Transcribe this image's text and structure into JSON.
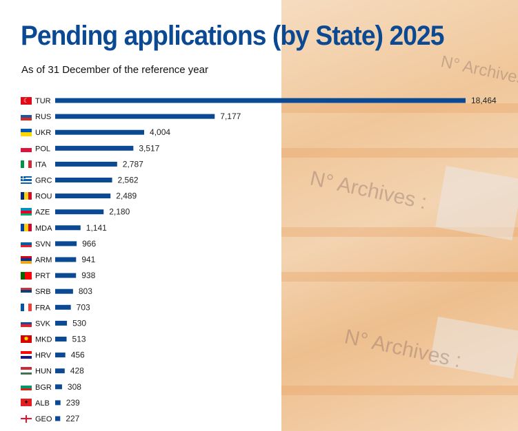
{
  "title": "Pending applications (by State) 2025",
  "subtitle": "As of 31 December of the reference year",
  "background": {
    "folder_labels": [
      "N° Archives :",
      "N° Archives :",
      "N° Archives :"
    ]
  },
  "colors": {
    "bar": "#0b4a93",
    "title": "#0b4a93",
    "text": "#111111"
  },
  "chart_data": {
    "type": "bar",
    "orientation": "horizontal",
    "title": "Pending applications (by State) 2025",
    "subtitle": "As of 31 December of the reference year",
    "xlabel": "",
    "ylabel": "",
    "grid": false,
    "categories": [
      "TUR",
      "RUS",
      "UKR",
      "POL",
      "ITA",
      "GRC",
      "ROU",
      "AZE",
      "MDA",
      "SVN",
      "ARM",
      "PRT",
      "SRB",
      "FRA",
      "SVK",
      "MKD",
      "HRV",
      "HUN",
      "BGR",
      "ALB",
      "GEO"
    ],
    "values": [
      18464,
      7177,
      4004,
      3517,
      2787,
      2562,
      2489,
      2180,
      1141,
      966,
      941,
      938,
      803,
      703,
      530,
      513,
      456,
      428,
      308,
      239,
      227
    ],
    "value_labels": [
      "18,464",
      "7,177",
      "4,004",
      "3,517",
      "2,787",
      "2,562",
      "2,489",
      "2,180",
      "1,141",
      "966",
      "941",
      "938",
      "803",
      "703",
      "530",
      "513",
      "456",
      "428",
      "308",
      "239",
      "227"
    ],
    "flags": [
      "turkey-flag-icon",
      "russia-flag-icon",
      "ukraine-flag-icon",
      "poland-flag-icon",
      "italy-flag-icon",
      "greece-flag-icon",
      "romania-flag-icon",
      "azerbaijan-flag-icon",
      "moldova-flag-icon",
      "slovenia-flag-icon",
      "armenia-flag-icon",
      "portugal-flag-icon",
      "serbia-flag-icon",
      "france-flag-icon",
      "slovakia-flag-icon",
      "north-macedonia-flag-icon",
      "croatia-flag-icon",
      "hungary-flag-icon",
      "bulgaria-flag-icon",
      "albania-flag-icon",
      "georgia-flag-icon"
    ],
    "xlim": [
      0,
      18464
    ]
  }
}
